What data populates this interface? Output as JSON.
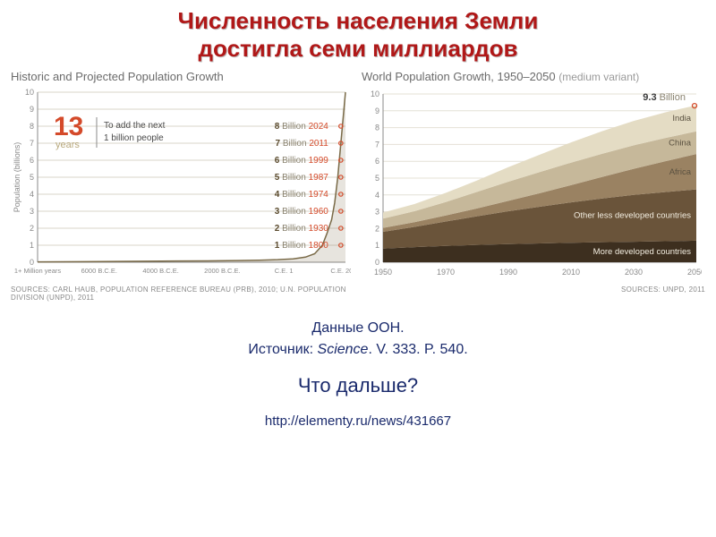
{
  "title_line1": "Численность населения Земли",
  "title_line2": "достигла семи миллиардов",
  "caption_line1": "Данные ООН.",
  "caption_line2_a": "Источник: ",
  "caption_line2_b": "Science",
  "caption_line2_c": ". V. 333. P. 540.",
  "question": "Что дальше?",
  "url": "http://elementy.ru/news/431667",
  "left_chart": {
    "type": "line",
    "title": "Historic and Projected Population Growth",
    "ylabel": "Population (billions)",
    "ylim": [
      0,
      10
    ],
    "ytick_step": 1,
    "xticks": [
      "1+ Million years",
      "6000 B.C.E.",
      "4000 B.C.E.",
      "2000 B.C.E.",
      "C.E. 1",
      "C.E. 2000"
    ],
    "sources": "SOURCES: CARL HAUB, POPULATION REFERENCE BUREAU (PRB), 2010; U.N. POPULATION DIVISION (UNPD), 2011",
    "callout_number": "13",
    "callout_unit": "years",
    "callout_text_a": "To add the next",
    "callout_text_b": "1 billion people",
    "milestones": [
      {
        "n": "8",
        "word": "Billion",
        "year": "2024"
      },
      {
        "n": "7",
        "word": "Billion",
        "year": "2011"
      },
      {
        "n": "6",
        "word": "Billion",
        "year": "1999"
      },
      {
        "n": "5",
        "word": "Billion",
        "year": "1987"
      },
      {
        "n": "4",
        "word": "Billion",
        "year": "1974"
      },
      {
        "n": "3",
        "word": "Billion",
        "year": "1960"
      },
      {
        "n": "2",
        "word": "Billion",
        "year": "1930"
      },
      {
        "n": "1",
        "word": "Billion",
        "year": "1800"
      }
    ],
    "marker_color": "#d44a2a",
    "number_color": "#5a4a2d",
    "word_color": "#8a8370",
    "line_color": "#7a6b48",
    "axis_color": "#8a8a8a",
    "grid_color": "#d8d4c8",
    "callout_num_color": "#d44a2a",
    "callout_unit_color": "#b9a97e",
    "historic_line": [
      {
        "x": 0.0,
        "y": 0.02
      },
      {
        "x": 0.15,
        "y": 0.03
      },
      {
        "x": 0.3,
        "y": 0.05
      },
      {
        "x": 0.45,
        "y": 0.07
      },
      {
        "x": 0.55,
        "y": 0.08
      },
      {
        "x": 0.65,
        "y": 0.1
      },
      {
        "x": 0.72,
        "y": 0.12
      },
      {
        "x": 0.78,
        "y": 0.15
      },
      {
        "x": 0.83,
        "y": 0.2
      },
      {
        "x": 0.87,
        "y": 0.3
      },
      {
        "x": 0.9,
        "y": 0.5
      },
      {
        "x": 0.925,
        "y": 1.0
      },
      {
        "x": 0.94,
        "y": 1.7
      },
      {
        "x": 0.955,
        "y": 2.5
      },
      {
        "x": 0.965,
        "y": 3.5
      },
      {
        "x": 0.975,
        "y": 5.0
      },
      {
        "x": 0.985,
        "y": 7.0
      },
      {
        "x": 1.0,
        "y": 10.0
      }
    ]
  },
  "right_chart": {
    "type": "area",
    "title": "World Population Growth, 1950–2050",
    "title_sub": "(medium variant)",
    "xlim": [
      1950,
      2050
    ],
    "xtick_step": 20,
    "ylim": [
      0,
      10
    ],
    "ytick_step": 1,
    "sources": "SOURCES: UNPD, 2011",
    "peak_label": "9.3",
    "peak_unit": "Billion",
    "axis_color": "#8a8a8a",
    "grid_color": "#e4e0d6",
    "marker_color": "#d44a2a",
    "peak_value": 9.3,
    "layers": [
      {
        "label": "More developed countries",
        "color": "#3d2f1f",
        "vals": [
          0.81,
          0.9,
          0.97,
          1.03,
          1.08,
          1.12,
          1.16,
          1.19,
          1.22,
          1.25,
          1.28
        ]
      },
      {
        "label": "Other less developed countries",
        "color": "#6a543a",
        "vals": [
          1.0,
          1.2,
          1.45,
          1.7,
          1.95,
          2.18,
          2.4,
          2.6,
          2.78,
          2.92,
          3.05
        ]
      },
      {
        "label": "Africa",
        "color": "#9a8262",
        "vals": [
          0.23,
          0.28,
          0.36,
          0.47,
          0.62,
          0.8,
          1.02,
          1.28,
          1.55,
          1.83,
          2.1
        ]
      },
      {
        "label": "China",
        "color": "#c6b89a",
        "vals": [
          0.55,
          0.65,
          0.8,
          0.98,
          1.14,
          1.26,
          1.34,
          1.38,
          1.4,
          1.38,
          1.35
        ]
      },
      {
        "label": "India",
        "color": "#e4dcc4",
        "vals": [
          0.36,
          0.43,
          0.54,
          0.68,
          0.86,
          1.03,
          1.2,
          1.34,
          1.45,
          1.52,
          1.55
        ]
      }
    ]
  }
}
